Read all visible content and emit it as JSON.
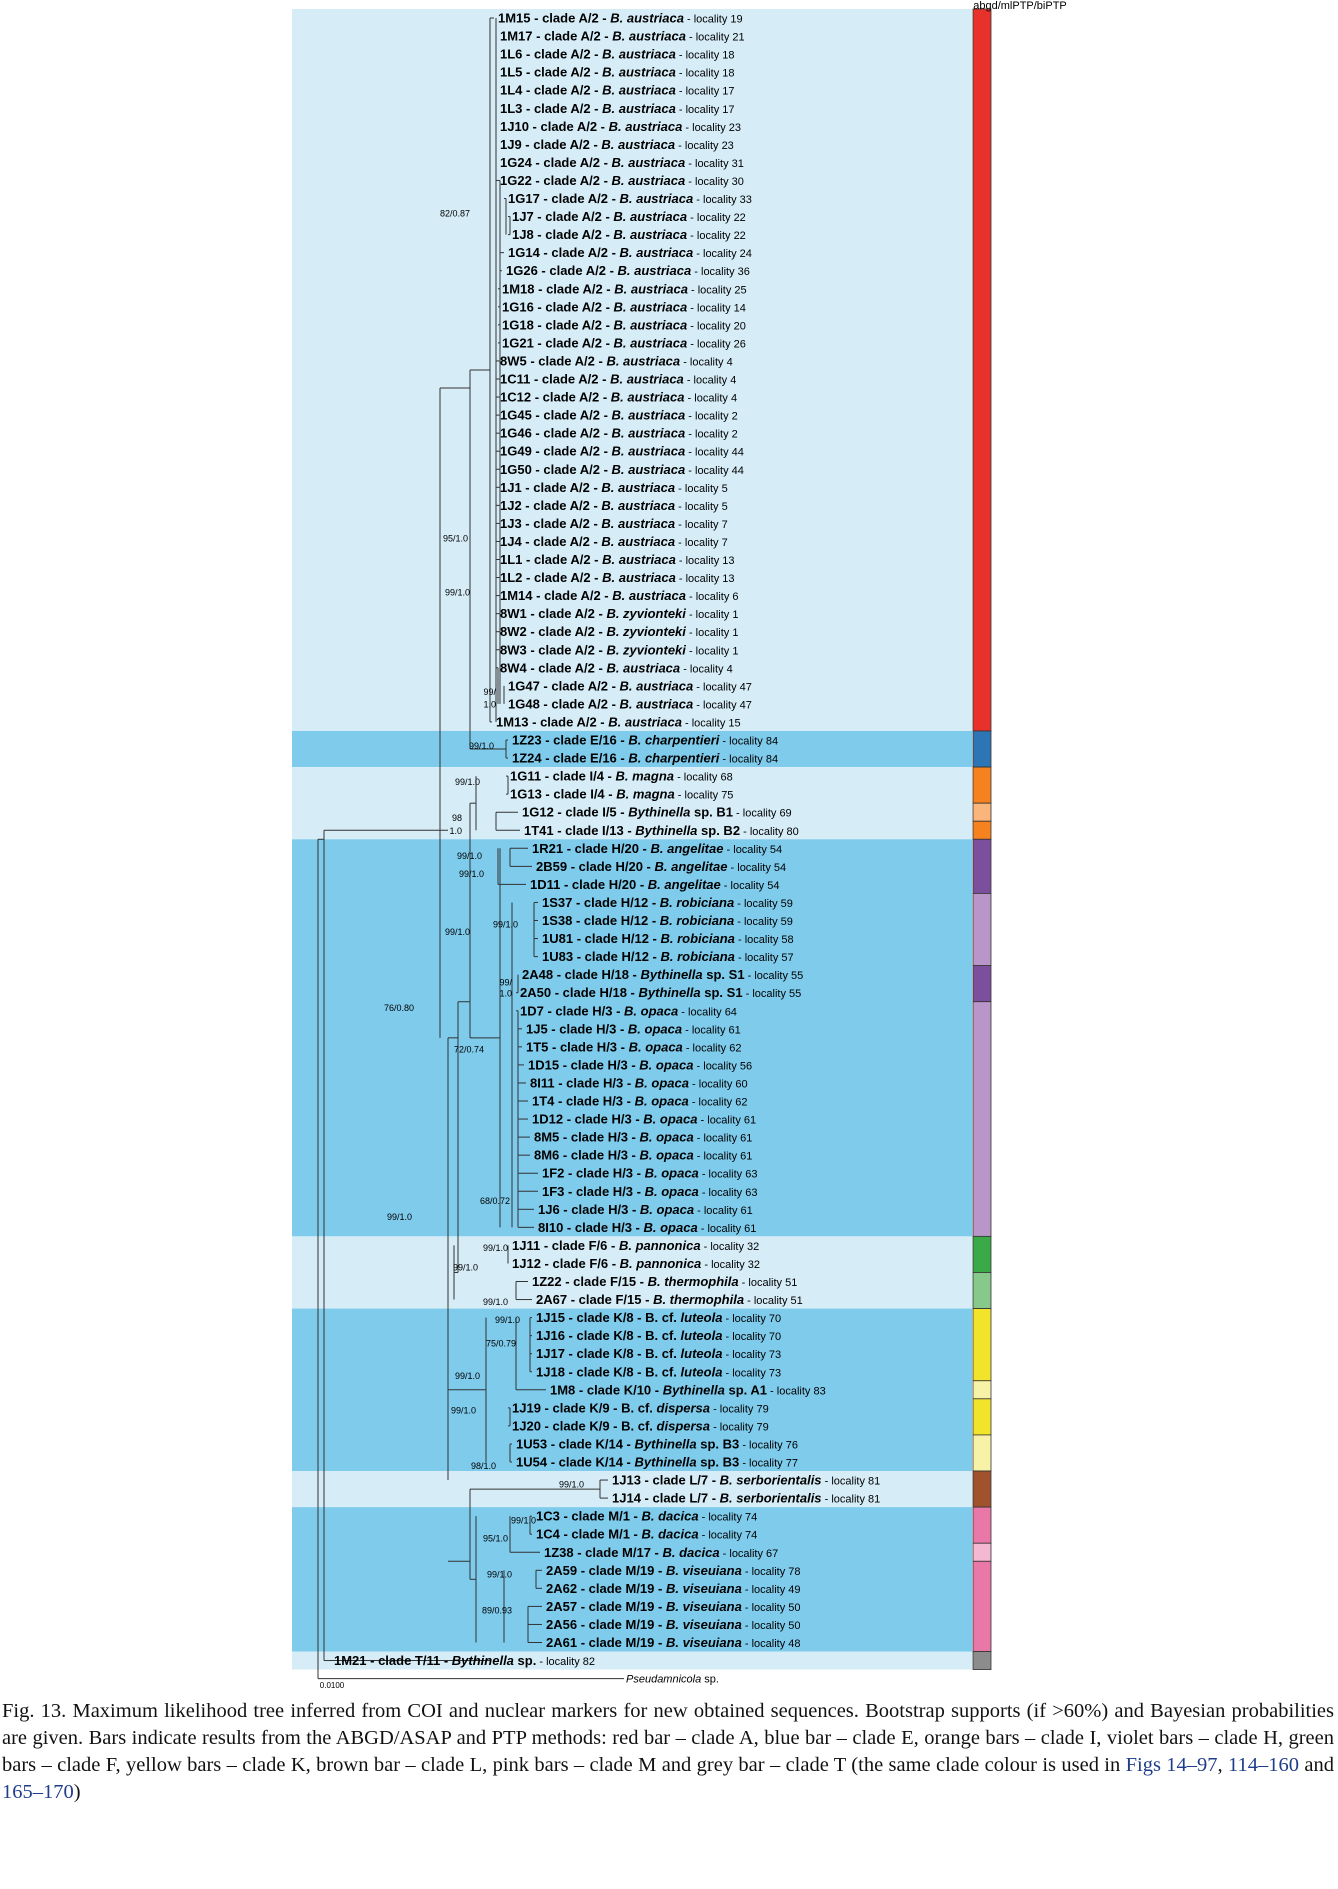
{
  "figure": {
    "column_header": "abgd/mlPTP/biPTP",
    "scale_bar_label": "0.0100",
    "tips": [
      {
        "id": "1M15",
        "clade": "clade A/2",
        "genus": "B.",
        "species": "austriaca",
        "loc": "locality 19"
      },
      {
        "id": "1M17",
        "clade": "clade A/2",
        "genus": "B.",
        "species": "austriaca",
        "loc": "locality 21"
      },
      {
        "id": "1L6",
        "clade": "clade A/2",
        "genus": "B.",
        "species": "austriaca",
        "loc": "locality 18"
      },
      {
        "id": "1L5",
        "clade": "clade A/2",
        "genus": "B.",
        "species": "austriaca",
        "loc": "locality 18"
      },
      {
        "id": "1L4",
        "clade": "clade A/2",
        "genus": "B.",
        "species": "austriaca",
        "loc": "locality 17"
      },
      {
        "id": "1L3",
        "clade": "clade A/2",
        "genus": "B.",
        "species": "austriaca",
        "loc": "locality 17"
      },
      {
        "id": "1J10",
        "clade": "clade A/2",
        "genus": "B.",
        "species": "austriaca",
        "loc": "locality 23"
      },
      {
        "id": "1J9",
        "clade": "clade A/2",
        "genus": "B.",
        "species": "austriaca",
        "loc": "locality 23"
      },
      {
        "id": "1G24",
        "clade": "clade A/2",
        "genus": "B.",
        "species": "austriaca",
        "loc": "locality 31"
      },
      {
        "id": "1G22",
        "clade": "clade A/2",
        "genus": "B.",
        "species": "austriaca",
        "loc": "locality 30"
      },
      {
        "id": "1G17",
        "clade": "clade A/2",
        "genus": "B.",
        "species": "austriaca",
        "loc": "locality 33"
      },
      {
        "id": "1J7",
        "clade": "clade A/2",
        "genus": "B.",
        "species": "austriaca",
        "loc": "locality 22"
      },
      {
        "id": "1J8",
        "clade": "clade A/2",
        "genus": "B.",
        "species": "austriaca",
        "loc": "locality 22"
      },
      {
        "id": "1G14",
        "clade": "clade A/2",
        "genus": "B.",
        "species": "austriaca",
        "loc": "locality 24"
      },
      {
        "id": "1G26",
        "clade": "clade A/2",
        "genus": "B.",
        "species": "austriaca",
        "loc": "locality 36"
      },
      {
        "id": "1M18",
        "clade": "clade A/2",
        "genus": "B.",
        "species": "austriaca",
        "loc": "locality 25"
      },
      {
        "id": "1G16",
        "clade": "clade A/2",
        "genus": "B.",
        "species": "austriaca",
        "loc": "locality 14"
      },
      {
        "id": "1G18",
        "clade": "clade A/2",
        "genus": "B.",
        "species": "austriaca",
        "loc": "locality 20"
      },
      {
        "id": "1G21",
        "clade": "clade A/2",
        "genus": "B.",
        "species": "austriaca",
        "loc": "locality 26"
      },
      {
        "id": "8W5",
        "clade": "clade A/2",
        "genus": "B.",
        "species": "austriaca",
        "loc": "locality 4"
      },
      {
        "id": "1C11",
        "clade": "clade A/2",
        "genus": "B.",
        "species": "austriaca",
        "loc": "locality 4"
      },
      {
        "id": "1C12",
        "clade": "clade A/2",
        "genus": "B.",
        "species": "austriaca",
        "loc": "locality 4"
      },
      {
        "id": "1G45",
        "clade": "clade A/2",
        "genus": "B.",
        "species": "austriaca",
        "loc": "locality 2"
      },
      {
        "id": "1G46",
        "clade": "clade A/2",
        "genus": "B.",
        "species": "austriaca",
        "loc": "locality 2"
      },
      {
        "id": "1G49",
        "clade": "clade A/2",
        "genus": "B.",
        "species": "austriaca",
        "loc": "locality 44"
      },
      {
        "id": "1G50",
        "clade": "clade A/2",
        "genus": "B.",
        "species": "austriaca",
        "loc": "locality 44"
      },
      {
        "id": "1J1",
        "clade": "clade A/2",
        "genus": "B.",
        "species": "austriaca",
        "loc": "locality 5"
      },
      {
        "id": "1J2",
        "clade": "clade A/2",
        "genus": "B.",
        "species": "austriaca",
        "loc": "locality 5"
      },
      {
        "id": "1J3",
        "clade": "clade A/2",
        "genus": "B.",
        "species": "austriaca",
        "loc": "locality 7"
      },
      {
        "id": "1J4",
        "clade": "clade A/2",
        "genus": "B.",
        "species": "austriaca",
        "loc": "locality 7"
      },
      {
        "id": "1L1",
        "clade": "clade A/2",
        "genus": "B.",
        "species": "austriaca",
        "loc": "locality 13"
      },
      {
        "id": "1L2",
        "clade": "clade A/2",
        "genus": "B.",
        "species": "austriaca",
        "loc": "locality 13"
      },
      {
        "id": "1M14",
        "clade": "clade A/2",
        "genus": "B.",
        "species": "austriaca",
        "loc": "locality 6"
      },
      {
        "id": "8W1",
        "clade": "clade A/2",
        "genus": "B.",
        "species": "zyvionteki",
        "loc": "locality 1"
      },
      {
        "id": "8W2",
        "clade": "clade A/2",
        "genus": "B.",
        "species": "zyvionteki",
        "loc": "locality 1"
      },
      {
        "id": "8W3",
        "clade": "clade A/2",
        "genus": "B.",
        "species": "zyvionteki",
        "loc": "locality 1"
      },
      {
        "id": "8W4",
        "clade": "clade A/2",
        "genus": "B.",
        "species": "austriaca",
        "loc": "locality 4"
      },
      {
        "id": "1G47",
        "clade": "clade A/2",
        "genus": "B.",
        "species": "austriaca",
        "loc": "locality 47"
      },
      {
        "id": "1G48",
        "clade": "clade A/2",
        "genus": "B.",
        "species": "austriaca",
        "loc": "locality 47"
      },
      {
        "id": "1M13",
        "clade": "clade A/2",
        "genus": "B.",
        "species": "austriaca",
        "loc": "locality 15"
      },
      {
        "id": "1Z23",
        "clade": "clade E/16",
        "genus": "B.",
        "species": "charpentieri",
        "loc": "locality 84"
      },
      {
        "id": "1Z24",
        "clade": "clade E/16",
        "genus": "B.",
        "species": "charpentieri",
        "loc": "locality 84"
      },
      {
        "id": "1G11",
        "clade": "clade I/4",
        "genus": "B.",
        "species": "magna",
        "loc": "locality 68"
      },
      {
        "id": "1G13",
        "clade": "clade I/4",
        "genus": "B.",
        "species": "magna",
        "loc": "locality 75"
      },
      {
        "id": "1G12",
        "clade": "clade I/5",
        "genus": "Bythinella",
        "species": "sp. B1",
        "loc": "locality 69"
      },
      {
        "id": "1T41",
        "clade": "clade I/13",
        "genus": "Bythinella",
        "species": "sp. B2",
        "loc": "locality 80"
      },
      {
        "id": "1R21",
        "clade": "clade H/20",
        "genus": "B.",
        "species": "angelitae",
        "loc": "locality 54"
      },
      {
        "id": "2B59",
        "clade": "clade H/20",
        "genus": "B.",
        "species": "angelitae",
        "loc": "locality 54"
      },
      {
        "id": "1D11",
        "clade": "clade H/20",
        "genus": "B.",
        "species": "angelitae",
        "loc": "locality 54"
      },
      {
        "id": "1S37",
        "clade": "clade H/12",
        "genus": "B.",
        "species": "robiciana",
        "loc": "locality 59"
      },
      {
        "id": "1S38",
        "clade": "clade H/12",
        "genus": "B.",
        "species": "robiciana",
        "loc": "locality 59"
      },
      {
        "id": "1U81",
        "clade": "clade H/12",
        "genus": "B.",
        "species": "robiciana",
        "loc": "locality 58"
      },
      {
        "id": "1U83",
        "clade": "clade H/12",
        "genus": "B.",
        "species": "robiciana",
        "loc": "locality 57"
      },
      {
        "id": "2A48",
        "clade": "clade H/18",
        "genus": "Bythinella",
        "species": "sp. S1",
        "loc": "locality 55"
      },
      {
        "id": "2A50",
        "clade": "clade H/18",
        "genus": "Bythinella",
        "species": "sp. S1",
        "loc": "locality 55"
      },
      {
        "id": "1D7",
        "clade": "clade H/3",
        "genus": "B.",
        "species": "opaca",
        "loc": "locality 64"
      },
      {
        "id": "1J5",
        "clade": "clade H/3",
        "genus": "B.",
        "species": "opaca",
        "loc": "locality 61"
      },
      {
        "id": "1T5",
        "clade": "clade H/3",
        "genus": "B.",
        "species": "opaca",
        "loc": "locality 62"
      },
      {
        "id": "1D15",
        "clade": "clade H/3",
        "genus": "B.",
        "species": "opaca",
        "loc": "locality 56"
      },
      {
        "id": "8I11",
        "clade": "clade H/3",
        "genus": "B.",
        "species": "opaca",
        "loc": "locality 60"
      },
      {
        "id": "1T4",
        "clade": "clade H/3",
        "genus": "B.",
        "species": "opaca",
        "loc": "locality 62"
      },
      {
        "id": "1D12",
        "clade": "clade H/3",
        "genus": "B.",
        "species": "opaca",
        "loc": "locality 61"
      },
      {
        "id": "8M5",
        "clade": "clade H/3",
        "genus": "B.",
        "species": "opaca",
        "loc": "locality 61"
      },
      {
        "id": "8M6",
        "clade": "clade H/3",
        "genus": "B.",
        "species": "opaca",
        "loc": "locality 61"
      },
      {
        "id": "1F2",
        "clade": "clade H/3",
        "genus": "B.",
        "species": "opaca",
        "loc": "locality 63"
      },
      {
        "id": "1F3",
        "clade": "clade H/3",
        "genus": "B.",
        "species": "opaca",
        "loc": "locality 63"
      },
      {
        "id": "1J6",
        "clade": "clade H/3",
        "genus": "B.",
        "species": "opaca",
        "loc": "locality 61"
      },
      {
        "id": "8I10",
        "clade": "clade H/3",
        "genus": "B.",
        "species": "opaca",
        "loc": "locality 61"
      },
      {
        "id": "1J11",
        "clade": "clade F/6",
        "genus": "B.",
        "species": "pannonica",
        "loc": "locality 32"
      },
      {
        "id": "1J12",
        "clade": "clade F/6",
        "genus": "B.",
        "species": "pannonica",
        "loc": "locality 32"
      },
      {
        "id": "1Z22",
        "clade": "clade F/15",
        "genus": "B.",
        "species": "thermophila",
        "loc": "locality 51"
      },
      {
        "id": "2A67",
        "clade": "clade F/15",
        "genus": "B.",
        "species": "thermophila",
        "loc": "locality 51"
      },
      {
        "id": "1J15",
        "clade": "clade K/8",
        "genus": "B. cf.",
        "species": "luteola",
        "loc": "locality 70"
      },
      {
        "id": "1J16",
        "clade": "clade K/8",
        "genus": "B. cf.",
        "species": "luteola",
        "loc": "locality 70"
      },
      {
        "id": "1J17",
        "clade": "clade K/8",
        "genus": "B. cf.",
        "species": "luteola",
        "loc": "locality 73"
      },
      {
        "id": "1J18",
        "clade": "clade K/8",
        "genus": "B. cf.",
        "species": "luteola",
        "loc": "locality 73"
      },
      {
        "id": "1M8",
        "clade": "clade K/10",
        "genus": "Bythinella",
        "species": "sp. A1",
        "loc": "locality 83"
      },
      {
        "id": "1J19",
        "clade": "clade K/9",
        "genus": "B. cf.",
        "species": "dispersa",
        "loc": "locality 79"
      },
      {
        "id": "1J20",
        "clade": "clade K/9",
        "genus": "B. cf.",
        "species": "dispersa",
        "loc": "locality 79"
      },
      {
        "id": "1U53",
        "clade": "clade K/14",
        "genus": "Bythinella",
        "species": "sp. B3",
        "loc": "locality 76"
      },
      {
        "id": "1U54",
        "clade": "clade K/14",
        "genus": "Bythinella",
        "species": "sp. B3",
        "loc": "locality 77"
      },
      {
        "id": "1J13",
        "clade": "clade L/7",
        "genus": "B.",
        "species": "serborientalis",
        "loc": "locality 81"
      },
      {
        "id": "1J14",
        "clade": "clade L/7",
        "genus": "B.",
        "species": "serborientalis",
        "loc": "locality 81"
      },
      {
        "id": "1C3",
        "clade": "clade M/1",
        "genus": "B.",
        "species": "dacica",
        "loc": "locality 74"
      },
      {
        "id": "1C4",
        "clade": "clade M/1",
        "genus": "B.",
        "species": "dacica",
        "loc": "locality 74"
      },
      {
        "id": "1Z38",
        "clade": "clade M/17",
        "genus": "B.",
        "species": "dacica",
        "loc": "locality 67"
      },
      {
        "id": "2A59",
        "clade": "clade M/19",
        "genus": "B.",
        "species": "viseuiana",
        "loc": "locality 78"
      },
      {
        "id": "2A62",
        "clade": "clade M/19",
        "genus": "B.",
        "species": "viseuiana",
        "loc": "locality 49"
      },
      {
        "id": "2A57",
        "clade": "clade M/19",
        "genus": "B.",
        "species": "viseuiana",
        "loc": "locality 50"
      },
      {
        "id": "2A56",
        "clade": "clade M/19",
        "genus": "B.",
        "species": "viseuiana",
        "loc": "locality 50"
      },
      {
        "id": "2A61",
        "clade": "clade M/19",
        "genus": "B.",
        "species": "viseuiana",
        "loc": "locality 48"
      },
      {
        "id": "1M21",
        "clade": "clade T/11",
        "genus": "Bythinella",
        "species": "sp.",
        "loc": "locality 82"
      }
    ],
    "outgroup": {
      "genus": "Pseudamnicola",
      "species": "sp."
    },
    "bands": [
      {
        "from": 0,
        "to": 39,
        "color": "#d6edf8"
      },
      {
        "from": 40,
        "to": 41,
        "color": "#7ecbec"
      },
      {
        "from": 42,
        "to": 45,
        "color": "#d6edf8"
      },
      {
        "from": 46,
        "to": 67,
        "color": "#7ecbec"
      },
      {
        "from": 68,
        "to": 71,
        "color": "#d6edf8"
      },
      {
        "from": 72,
        "to": 80,
        "color": "#7ecbec"
      },
      {
        "from": 81,
        "to": 82,
        "color": "#d6edf8"
      },
      {
        "from": 83,
        "to": 90,
        "color": "#7ecbec"
      },
      {
        "from": 91,
        "to": 91,
        "color": "#d6edf8"
      }
    ],
    "bars": [
      {
        "from": 0,
        "to": 39,
        "color": "#e8312a"
      },
      {
        "from": 40,
        "to": 41,
        "color": "#2e75b6"
      },
      {
        "from": 42,
        "to": 43,
        "color": "#f5821f"
      },
      {
        "from": 44,
        "to": 44,
        "color": "#f9b57c"
      },
      {
        "from": 45,
        "to": 45,
        "color": "#f5821f"
      },
      {
        "from": 46,
        "to": 48,
        "color": "#7b4f9d"
      },
      {
        "from": 49,
        "to": 52,
        "color": "#b996c8"
      },
      {
        "from": 53,
        "to": 54,
        "color": "#7b4f9d"
      },
      {
        "from": 55,
        "to": 67,
        "color": "#b996c8"
      },
      {
        "from": 68,
        "to": 69,
        "color": "#3aaa48"
      },
      {
        "from": 70,
        "to": 71,
        "color": "#86c98b"
      },
      {
        "from": 72,
        "to": 75,
        "color": "#f1e42a"
      },
      {
        "from": 76,
        "to": 76,
        "color": "#f7f2a8"
      },
      {
        "from": 77,
        "to": 78,
        "color": "#f1e42a"
      },
      {
        "from": 79,
        "to": 80,
        "color": "#f7f2a8"
      },
      {
        "from": 81,
        "to": 82,
        "color": "#a0522d"
      },
      {
        "from": 83,
        "to": 84,
        "color": "#e978a8"
      },
      {
        "from": 85,
        "to": 85,
        "color": "#f5b8d2"
      },
      {
        "from": 86,
        "to": 90,
        "color": "#e978a8"
      },
      {
        "from": 91,
        "to": 91,
        "color": "#8c8c8c"
      }
    ],
    "supports": [
      "82/0.87",
      "95/1.0",
      "99/1.0",
      "99/",
      "1.0",
      "99/1.0",
      "99/1.0",
      "98",
      "1.0",
      "99/1.0",
      "99/1.0",
      "99/1.0",
      "99/1.0",
      "99/",
      "1.0",
      "72/0.74",
      "68/0.72",
      "76/0.80",
      "99/1.0",
      "99/1.0",
      "99/1.0",
      "99/1.0",
      "99/1.0",
      "75/0.79",
      "99/1.0",
      "99/1.0",
      "98/1.0",
      "99/1.0",
      "99/1.0",
      "95/1.0",
      "99/1.0",
      "89/0.93"
    ]
  },
  "caption": {
    "text": "Fig. 13. Maximum likelihood tree inferred from COI and nuclear markers for new obtained sequences. Bootstrap supports (if >60%) and Bayesian probabilities are given. Bars indicate results from the ABGD/ASAP and PTP methods: red bar – clade A, blue bar – clade E, orange bars – clade I, violet bars – clade H, green bars – clade F, yellow bars – clade K, brown bar – clade L, pink bars – clade M and grey bar – clade T (the same clade colour is used in ",
    "link1": "Figs 14–97",
    "sep1": ", ",
    "link2": "114–160",
    "sep2": " and ",
    "link3": "165–170",
    "end": ")"
  }
}
